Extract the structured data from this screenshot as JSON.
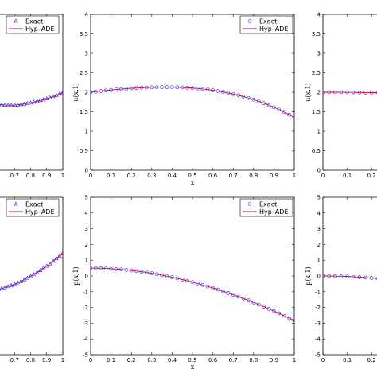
{
  "colors": {
    "exact": "#1f1fff",
    "approx": "#e8001c",
    "axis": "#000000",
    "background": "#ffffff"
  },
  "chart_data": [
    {
      "id": "top-left",
      "type": "line",
      "xlim": [
        0.6,
        1
      ],
      "ylim": [
        0,
        4
      ],
      "xticks": [
        "0.7",
        "0.8",
        "0.9",
        "1"
      ],
      "yticks": [],
      "xlabel": "",
      "ylabel": "",
      "legend": {
        "placement": "top-left",
        "entries": [
          "Exact",
          "Hyp–ADE"
        ]
      },
      "exact_marker": "triangle",
      "x": [
        0.6,
        0.62,
        0.64,
        0.66,
        0.68,
        0.7,
        0.72,
        0.74,
        0.76,
        0.78,
        0.8,
        0.82,
        0.84,
        0.86,
        0.88,
        0.9,
        0.92,
        0.94,
        0.96,
        0.98,
        1.0
      ],
      "series": [
        {
          "name": "Exact",
          "values": [
            1.7,
            1.685,
            1.675,
            1.67,
            1.67,
            1.675,
            1.68,
            1.69,
            1.7,
            1.715,
            1.73,
            1.75,
            1.77,
            1.79,
            1.81,
            1.835,
            1.86,
            1.89,
            1.92,
            1.955,
            1.99
          ]
        },
        {
          "name": "Hyp–ADE",
          "values": [
            1.7,
            1.685,
            1.675,
            1.67,
            1.67,
            1.675,
            1.68,
            1.69,
            1.7,
            1.715,
            1.73,
            1.75,
            1.77,
            1.79,
            1.81,
            1.835,
            1.86,
            1.89,
            1.92,
            1.955,
            1.99
          ]
        }
      ]
    },
    {
      "id": "top-middle",
      "type": "line",
      "xlim": [
        0,
        1
      ],
      "ylim": [
        0,
        4
      ],
      "xticks": [
        "0",
        "0.1",
        "0.2",
        "0.3",
        "0.4",
        "0.5",
        "0.6",
        "0.7",
        "0.8",
        "0.9",
        "1"
      ],
      "yticks": [
        "0",
        "0.5",
        "1",
        "1.5",
        "2",
        "2.5",
        "3",
        "3.5",
        "4"
      ],
      "xlabel": "x",
      "ylabel": "u(x,1)",
      "legend": {
        "placement": "top-right",
        "entries": [
          "Exact",
          "Hyp–ADE"
        ]
      },
      "exact_marker": "circle",
      "x": [
        0,
        0.025,
        0.05,
        0.075,
        0.1,
        0.125,
        0.15,
        0.175,
        0.2,
        0.225,
        0.25,
        0.275,
        0.3,
        0.325,
        0.35,
        0.375,
        0.4,
        0.425,
        0.45,
        0.475,
        0.5,
        0.525,
        0.55,
        0.575,
        0.6,
        0.625,
        0.65,
        0.675,
        0.7,
        0.725,
        0.75,
        0.775,
        0.8,
        0.825,
        0.85,
        0.875,
        0.9,
        0.925,
        0.95,
        0.975,
        1
      ],
      "series": [
        {
          "name": "Exact",
          "values": [
            2.0,
            2.016,
            2.031,
            2.045,
            2.058,
            2.07,
            2.081,
            2.091,
            2.1,
            2.108,
            2.115,
            2.121,
            2.126,
            2.129,
            2.131,
            2.131,
            2.13,
            2.127,
            2.122,
            2.116,
            2.107,
            2.096,
            2.083,
            2.068,
            2.05,
            2.03,
            2.007,
            1.982,
            1.954,
            1.923,
            1.889,
            1.852,
            1.812,
            1.768,
            1.721,
            1.67,
            1.615,
            1.556,
            1.493,
            1.425,
            1.35
          ]
        },
        {
          "name": "Hyp–ADE",
          "values": [
            2.0,
            2.016,
            2.031,
            2.045,
            2.058,
            2.07,
            2.081,
            2.091,
            2.1,
            2.108,
            2.115,
            2.121,
            2.126,
            2.129,
            2.131,
            2.131,
            2.13,
            2.127,
            2.122,
            2.116,
            2.107,
            2.096,
            2.083,
            2.068,
            2.05,
            2.03,
            2.007,
            1.982,
            1.954,
            1.923,
            1.889,
            1.852,
            1.812,
            1.768,
            1.721,
            1.67,
            1.615,
            1.556,
            1.493,
            1.425,
            1.35
          ]
        }
      ]
    },
    {
      "id": "top-right",
      "type": "line",
      "xlim": [
        0,
        1
      ],
      "ylim": [
        0,
        4
      ],
      "xticks": [
        "0",
        "0.1",
        "0.2"
      ],
      "yticks": [
        "0",
        "0.5",
        "1",
        "1.5",
        "2",
        "2.5",
        "3",
        "3.5",
        "4"
      ],
      "xlabel": "",
      "ylabel": "u(x,1)",
      "legend": null,
      "exact_marker": "circle",
      "x": [
        0,
        0.025,
        0.05,
        0.075,
        0.1,
        0.125,
        0.15,
        0.175,
        0.2,
        0.225,
        0.25,
        0.275
      ],
      "series": [
        {
          "name": "Exact",
          "values": [
            2.0,
            2.0,
            2.0,
            1.999,
            1.998,
            1.997,
            1.995,
            1.993,
            1.99,
            1.987,
            1.983,
            1.978
          ]
        },
        {
          "name": "Hyp–ADE",
          "values": [
            2.0,
            2.0,
            2.0,
            1.999,
            1.998,
            1.997,
            1.995,
            1.993,
            1.99,
            1.987,
            1.983,
            1.978
          ]
        }
      ]
    },
    {
      "id": "bottom-left",
      "type": "line",
      "xlim": [
        0.6,
        1
      ],
      "ylim": [
        -5,
        5
      ],
      "xticks": [
        "0.7",
        "0.8",
        "0.9",
        "1"
      ],
      "yticks": [],
      "xlabel": "",
      "ylabel": "",
      "legend": {
        "placement": "top-left",
        "entries": [
          "Exact",
          "Hyp–ADE"
        ]
      },
      "exact_marker": "triangle",
      "x": [
        0.6,
        0.62,
        0.64,
        0.66,
        0.68,
        0.7,
        0.72,
        0.74,
        0.76,
        0.78,
        0.8,
        0.82,
        0.84,
        0.86,
        0.88,
        0.9,
        0.92,
        0.94,
        0.96,
        0.98,
        1.0
      ],
      "series": [
        {
          "name": "Exact",
          "values": [
            -0.85,
            -0.8,
            -0.74,
            -0.67,
            -0.6,
            -0.52,
            -0.43,
            -0.34,
            -0.24,
            -0.13,
            -0.02,
            0.1,
            0.22,
            0.35,
            0.49,
            0.63,
            0.78,
            0.94,
            1.1,
            1.27,
            1.45
          ]
        },
        {
          "name": "Hyp–ADE",
          "values": [
            -0.85,
            -0.8,
            -0.74,
            -0.67,
            -0.6,
            -0.52,
            -0.43,
            -0.34,
            -0.24,
            -0.13,
            -0.02,
            0.1,
            0.22,
            0.35,
            0.49,
            0.63,
            0.78,
            0.94,
            1.1,
            1.27,
            1.45
          ]
        }
      ]
    },
    {
      "id": "bottom-middle",
      "type": "line",
      "xlim": [
        0,
        1
      ],
      "ylim": [
        -5,
        5
      ],
      "xticks": [
        "0",
        "0.1",
        "0.2",
        "0.3",
        "0.4",
        "0.5",
        "0.6",
        "0.7",
        "0.8",
        "0.9",
        "1"
      ],
      "yticks": [
        "-5",
        "-4",
        "-3",
        "-2",
        "-1",
        "0",
        "1",
        "2",
        "3",
        "4",
        "5"
      ],
      "xlabel": "x",
      "ylabel": "p(x,1)",
      "legend": {
        "placement": "top-right",
        "entries": [
          "Exact",
          "Hyp–ADE"
        ]
      },
      "exact_marker": "circle",
      "x": [
        0,
        0.025,
        0.05,
        0.075,
        0.1,
        0.125,
        0.15,
        0.175,
        0.2,
        0.225,
        0.25,
        0.275,
        0.3,
        0.325,
        0.35,
        0.375,
        0.4,
        0.425,
        0.45,
        0.475,
        0.5,
        0.525,
        0.55,
        0.575,
        0.6,
        0.625,
        0.65,
        0.675,
        0.7,
        0.725,
        0.75,
        0.775,
        0.8,
        0.825,
        0.85,
        0.875,
        0.9,
        0.925,
        0.95,
        0.975,
        1
      ],
      "series": [
        {
          "name": "Exact",
          "values": [
            0.5,
            0.497,
            0.49,
            0.478,
            0.461,
            0.44,
            0.414,
            0.384,
            0.35,
            0.311,
            0.268,
            0.22,
            0.168,
            0.112,
            0.052,
            -0.013,
            -0.08,
            -0.152,
            -0.228,
            -0.308,
            -0.39,
            -0.477,
            -0.568,
            -0.663,
            -0.76,
            -0.863,
            -0.968,
            -1.078,
            -1.19,
            -1.308,
            -1.428,
            -1.552,
            -1.68,
            -1.812,
            -1.948,
            -2.087,
            -2.23,
            -2.376,
            -2.525,
            -2.679,
            -2.835
          ]
        },
        {
          "name": "Hyp–ADE",
          "values": [
            0.5,
            0.497,
            0.49,
            0.478,
            0.461,
            0.44,
            0.414,
            0.384,
            0.35,
            0.311,
            0.268,
            0.22,
            0.168,
            0.112,
            0.052,
            -0.013,
            -0.08,
            -0.152,
            -0.228,
            -0.308,
            -0.39,
            -0.477,
            -0.568,
            -0.663,
            -0.76,
            -0.863,
            -0.968,
            -1.078,
            -1.19,
            -1.308,
            -1.428,
            -1.552,
            -1.68,
            -1.812,
            -1.948,
            -2.087,
            -2.23,
            -2.376,
            -2.525,
            -2.679,
            -2.835
          ]
        }
      ]
    },
    {
      "id": "bottom-right",
      "type": "line",
      "xlim": [
        0,
        1
      ],
      "ylim": [
        -5,
        5
      ],
      "xticks": [
        "0",
        "0.1",
        "0.2"
      ],
      "yticks": [
        "-5",
        "-4",
        "-3",
        "-2",
        "-1",
        "0",
        "1",
        "2",
        "3",
        "4",
        "5"
      ],
      "xlabel": "",
      "ylabel": "p(x,1)",
      "legend": null,
      "exact_marker": "circle",
      "x": [
        0,
        0.025,
        0.05,
        0.075,
        0.1,
        0.125,
        0.15,
        0.175,
        0.2,
        0.225,
        0.25,
        0.275
      ],
      "series": [
        {
          "name": "Exact",
          "values": [
            0.0,
            -0.002,
            -0.008,
            -0.018,
            -0.032,
            -0.05,
            -0.072,
            -0.098,
            -0.128,
            -0.162,
            -0.2,
            -0.242
          ]
        },
        {
          "name": "Hyp–ADE",
          "values": [
            0.0,
            -0.002,
            -0.008,
            -0.018,
            -0.032,
            -0.05,
            -0.072,
            -0.098,
            -0.128,
            -0.162,
            -0.2,
            -0.242
          ]
        }
      ]
    }
  ]
}
